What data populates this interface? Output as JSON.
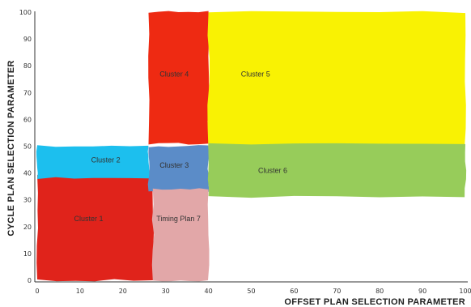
{
  "chart_data": {
    "type": "area",
    "xlabel": "OFFSET PLAN SELECTION PARAMETER",
    "ylabel": "CYCLE PLAN SELECTION PARAMETER",
    "xlim": [
      0,
      100
    ],
    "ylim": [
      0,
      100
    ],
    "xticks": [
      "0",
      "10",
      "20",
      "30",
      "40",
      "50",
      "60",
      "70",
      "80",
      "90",
      "100"
    ],
    "yticks": [
      "0",
      "10",
      "20",
      "30",
      "40",
      "50",
      "60",
      "70",
      "80",
      "90",
      "100"
    ],
    "grid": false,
    "regions": [
      {
        "label": "Cluster 1",
        "x": [
          0,
          27
        ],
        "y": [
          0,
          39
        ],
        "color": "#e0231b",
        "label_at": [
          12,
          22
        ]
      },
      {
        "label": "Cluster 2",
        "x": [
          0,
          26
        ],
        "y": [
          38,
          50
        ],
        "color": "#1cbfee",
        "label_at": [
          16,
          44
        ]
      },
      {
        "label": "Cluster 3",
        "x": [
          26,
          40
        ],
        "y": [
          33,
          50
        ],
        "color": "#5b8cc8",
        "label_at": [
          32,
          42
        ]
      },
      {
        "label": "Cluster 4",
        "x": [
          26,
          40
        ],
        "y": [
          51,
          100
        ],
        "color": "#ee2a12",
        "label_at": [
          32,
          76
        ]
      },
      {
        "label": "Cluster 5",
        "x": [
          40,
          100
        ],
        "y": [
          48,
          100
        ],
        "color": "#f9f203",
        "label_at": [
          51,
          76
        ]
      },
      {
        "label": "Cluster 6",
        "x": [
          40,
          100
        ],
        "y": [
          31,
          51
        ],
        "color": "#97cc5a",
        "label_at": [
          55,
          40
        ]
      },
      {
        "label": "Timing Plan 7",
        "x": [
          27,
          40
        ],
        "y": [
          0,
          34
        ],
        "color": "#e2a7a8",
        "label_at": [
          33,
          22
        ]
      }
    ]
  }
}
